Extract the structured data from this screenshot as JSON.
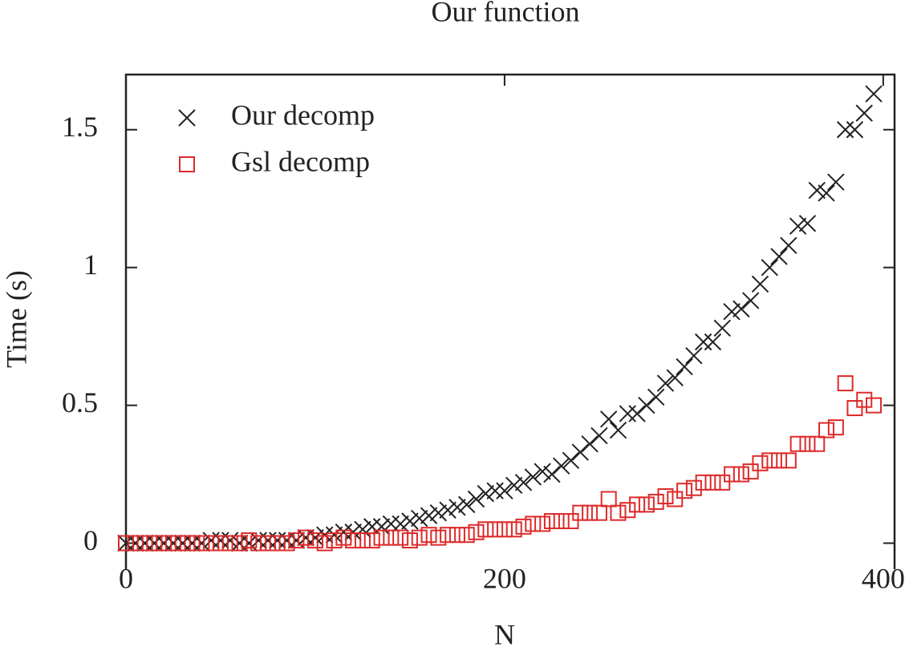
{
  "chart_data": {
    "type": "scatter",
    "title": "Our function",
    "x_label": "N",
    "y_label": "Time (s)",
    "xlim": [
      0,
      406
    ],
    "ylim": [
      -0.08,
      1.7
    ],
    "xticks": [
      0,
      200,
      400
    ],
    "yticks": [
      0,
      0.5,
      1,
      1.5
    ],
    "legend": "upper left",
    "x": [
      0,
      5,
      10,
      15,
      20,
      25,
      30,
      35,
      40,
      45,
      50,
      55,
      60,
      65,
      70,
      75,
      80,
      85,
      90,
      95,
      100,
      105,
      110,
      115,
      120,
      125,
      130,
      135,
      140,
      145,
      150,
      155,
      160,
      165,
      170,
      175,
      180,
      185,
      190,
      195,
      200,
      205,
      210,
      215,
      220,
      225,
      230,
      235,
      240,
      245,
      250,
      255,
      260,
      265,
      270,
      275,
      280,
      285,
      290,
      295,
      300,
      305,
      310,
      315,
      320,
      325,
      330,
      335,
      340,
      345,
      350,
      355,
      360,
      365,
      370,
      375,
      380,
      385,
      390,
      395
    ],
    "series": [
      {
        "name": "Our decomp",
        "color": "#222222",
        "marker": "x",
        "values": [
          0,
          0,
          0,
          0,
          0,
          0,
          0,
          0,
          0,
          0.01,
          0.01,
          0.01,
          0,
          0,
          0.01,
          0.01,
          0.01,
          0.01,
          0.01,
          0.02,
          0.02,
          0.03,
          0.03,
          0.04,
          0.04,
          0.05,
          0.06,
          0.06,
          0.07,
          0.07,
          0.08,
          0.09,
          0.1,
          0.11,
          0.12,
          0.13,
          0.14,
          0.16,
          0.18,
          0.19,
          0.19,
          0.21,
          0.22,
          0.24,
          0.26,
          0.25,
          0.28,
          0.3,
          0.33,
          0.36,
          0.39,
          0.45,
          0.41,
          0.47,
          0.47,
          0.5,
          0.53,
          0.58,
          0.6,
          0.64,
          0.68,
          0.73,
          0.73,
          0.78,
          0.84,
          0.85,
          0.88,
          0.94,
          1.0,
          1.04,
          1.08,
          1.15,
          1.16,
          1.28,
          1.27,
          1.31,
          1.5,
          1.5,
          1.56,
          1.63
        ]
      },
      {
        "name": "Gsl decomp",
        "color": "#dd2a2a",
        "marker": "square",
        "values": [
          0,
          0,
          0,
          0,
          0,
          0,
          0,
          0,
          0,
          0,
          0,
          0,
          0,
          0.01,
          0,
          0,
          0,
          0,
          0.01,
          0.02,
          0.01,
          0,
          0.01,
          0.02,
          0.01,
          0.01,
          0.01,
          0.02,
          0.02,
          0.02,
          0.01,
          0.02,
          0.03,
          0.02,
          0.03,
          0.03,
          0.03,
          0.04,
          0.05,
          0.05,
          0.05,
          0.05,
          0.06,
          0.07,
          0.07,
          0.08,
          0.08,
          0.08,
          0.11,
          0.11,
          0.11,
          0.16,
          0.11,
          0.12,
          0.14,
          0.14,
          0.15,
          0.17,
          0.16,
          0.19,
          0.2,
          0.22,
          0.22,
          0.22,
          0.25,
          0.25,
          0.26,
          0.29,
          0.3,
          0.3,
          0.3,
          0.36,
          0.36,
          0.36,
          0.41,
          0.42,
          0.58,
          0.49,
          0.52,
          0.5
        ]
      }
    ]
  }
}
